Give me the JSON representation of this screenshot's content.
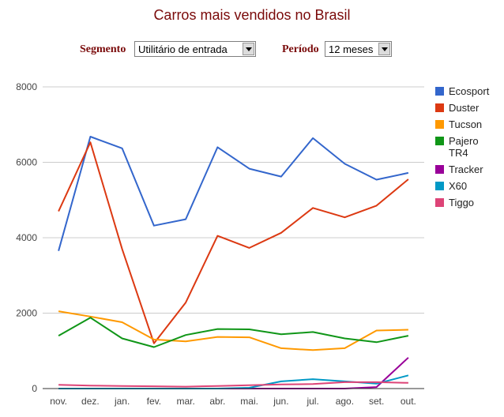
{
  "page": {
    "title": "Carros mais vendidos no Brasil"
  },
  "controls": {
    "segment_label": "Segmento",
    "segment_value": "Utilitário de entrada",
    "period_label": "Período",
    "period_value": "12 meses"
  },
  "chart_data": {
    "type": "line",
    "title": "Carros mais vendidos no Brasil",
    "xlabel": "",
    "ylabel": "",
    "ylim": [
      0,
      8000
    ],
    "yticks": [
      "0",
      "2000",
      "4000",
      "6000",
      "8000"
    ],
    "grid": true,
    "legend_position": "right",
    "categories": [
      "nov.",
      "dez.",
      "jan.",
      "fev.",
      "mar.",
      "abr.",
      "mai.",
      "jun.",
      "jul.",
      "ago.",
      "set.",
      "out."
    ],
    "series": [
      {
        "name": "Ecosport",
        "color": "#3366cc",
        "values": [
          3650,
          6680,
          6370,
          4320,
          4490,
          6400,
          5830,
          5620,
          6640,
          5960,
          5540,
          5720
        ]
      },
      {
        "name": "Duster",
        "color": "#dc3912",
        "values": [
          4700,
          6530,
          3700,
          1200,
          2280,
          4050,
          3730,
          4130,
          4790,
          4540,
          4850,
          5550
        ]
      },
      {
        "name": "Tucson",
        "color": "#ff9900",
        "values": [
          2050,
          1910,
          1760,
          1300,
          1250,
          1370,
          1360,
          1070,
          1020,
          1070,
          1540,
          1560
        ]
      },
      {
        "name": "Pajero TR4",
        "color": "#109618",
        "values": [
          1400,
          1880,
          1330,
          1100,
          1420,
          1580,
          1570,
          1440,
          1500,
          1330,
          1230,
          1400
        ]
      },
      {
        "name": "Tracker",
        "color": "#990099",
        "values": [
          0,
          0,
          0,
          0,
          0,
          0,
          0,
          0,
          0,
          0,
          40,
          820
        ]
      },
      {
        "name": "X60",
        "color": "#0099c6",
        "values": [
          0,
          0,
          0,
          0,
          0,
          0,
          20,
          190,
          250,
          190,
          130,
          350
        ]
      },
      {
        "name": "Tiggo",
        "color": "#dd4477",
        "values": [
          100,
          80,
          70,
          60,
          50,
          70,
          90,
          110,
          120,
          170,
          170,
          150
        ]
      }
    ]
  }
}
